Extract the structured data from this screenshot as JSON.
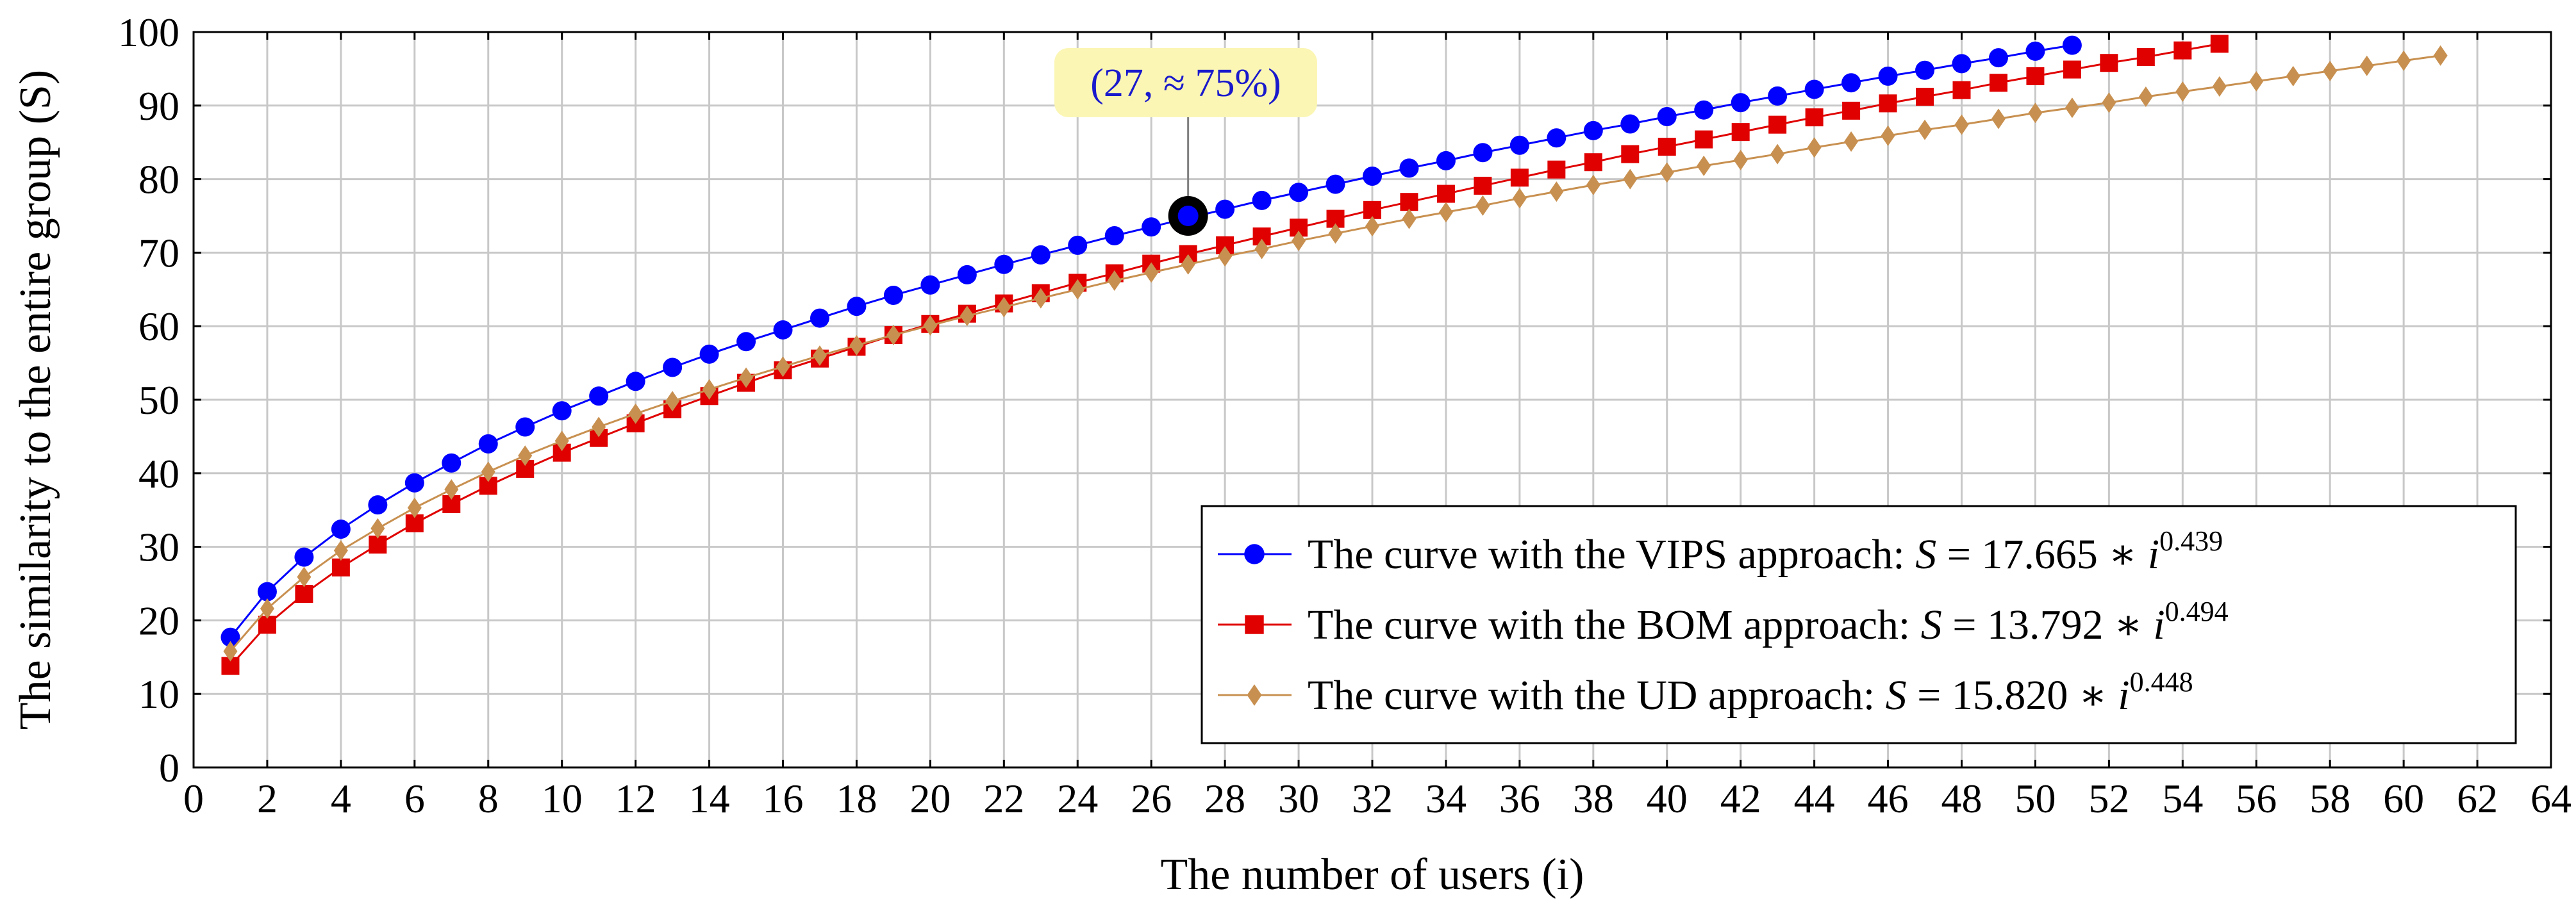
{
  "chart_data": {
    "type": "line",
    "xlabel": "The number of users (i)",
    "ylabel": "The similarity to the entire group (S)",
    "xlim": [
      0,
      64
    ],
    "ylim": [
      0,
      100
    ],
    "x_ticks": [
      0,
      2,
      4,
      6,
      8,
      10,
      12,
      14,
      16,
      18,
      20,
      22,
      24,
      26,
      28,
      30,
      32,
      34,
      36,
      38,
      40,
      42,
      44,
      46,
      48,
      50,
      52,
      54,
      56,
      58,
      60,
      62,
      64
    ],
    "y_ticks": [
      0,
      10,
      20,
      30,
      40,
      50,
      60,
      70,
      80,
      90,
      100
    ],
    "grid": true,
    "legend_position": "bottom-right",
    "annotation": {
      "text": "(27, ≈ 75%)",
      "x": 27,
      "y": 75,
      "box_color": "#fbf6b4"
    },
    "series": [
      {
        "name": "VIPS",
        "label": "The curve with the VIPS approach: ",
        "formula_prefix": "S",
        "formula_mid": " = 17.665 ∗ ",
        "formula_var": "i",
        "exponent": "0.439",
        "color": "#0000ff",
        "marker": "circle",
        "x": [
          1,
          2,
          3,
          4,
          5,
          6,
          7,
          8,
          9,
          10,
          11,
          12,
          13,
          14,
          15,
          16,
          17,
          18,
          19,
          20,
          21,
          22,
          23,
          24,
          25,
          26,
          27,
          28,
          29,
          30,
          31,
          32,
          33,
          34,
          35,
          36,
          37,
          38,
          39,
          40,
          41,
          42,
          43,
          44,
          45,
          46,
          47,
          48,
          49,
          50,
          51
        ],
        "values": [
          17.7,
          23.9,
          28.6,
          32.4,
          35.7,
          38.7,
          41.4,
          44.0,
          46.3,
          48.5,
          50.5,
          52.5,
          54.4,
          56.2,
          57.9,
          59.5,
          61.1,
          62.7,
          64.2,
          65.6,
          67.0,
          68.4,
          69.7,
          71.0,
          72.3,
          73.5,
          74.7,
          75.9,
          77.1,
          78.2,
          79.3,
          80.4,
          81.5,
          82.5,
          83.6,
          84.6,
          85.6,
          86.6,
          87.5,
          88.5,
          89.4,
          90.4,
          91.3,
          92.2,
          93.1,
          94.0,
          94.8,
          95.7,
          96.5,
          97.4,
          98.2
        ]
      },
      {
        "name": "BOM",
        "label": "The curve with the BOM approach: ",
        "formula_prefix": "S",
        "formula_mid": " = 13.792 ∗ ",
        "formula_var": "i",
        "exponent": "0.494",
        "color": "#e00000",
        "marker": "square",
        "x": [
          1,
          2,
          3,
          4,
          5,
          6,
          7,
          8,
          9,
          10,
          11,
          12,
          13,
          14,
          15,
          16,
          17,
          18,
          19,
          20,
          21,
          22,
          23,
          24,
          25,
          26,
          27,
          28,
          29,
          30,
          31,
          32,
          33,
          34,
          35,
          36,
          37,
          38,
          39,
          40,
          41,
          42,
          43,
          44,
          45,
          46,
          47,
          48,
          49,
          50,
          51,
          52,
          53,
          54,
          55
        ],
        "values": [
          13.8,
          19.4,
          23.6,
          27.2,
          30.3,
          33.2,
          35.8,
          38.3,
          40.6,
          42.8,
          44.8,
          46.8,
          48.7,
          50.5,
          52.3,
          54.0,
          55.6,
          57.2,
          58.8,
          60.3,
          61.7,
          63.1,
          64.5,
          65.9,
          67.2,
          68.5,
          69.8,
          71.0,
          72.2,
          73.4,
          74.6,
          75.8,
          76.9,
          78.0,
          79.1,
          80.2,
          81.3,
          82.3,
          83.4,
          84.4,
          85.4,
          86.4,
          87.4,
          88.4,
          89.3,
          90.3,
          91.2,
          92.1,
          93.1,
          94.0,
          94.9,
          95.8,
          96.6,
          97.5,
          98.4
        ]
      },
      {
        "name": "UD",
        "label": "The curve with the UD approach: ",
        "formula_prefix": "S",
        "formula_mid": " = 15.820 ∗ ",
        "formula_var": "i",
        "exponent": "0.448",
        "color": "#c89050",
        "marker": "diamond",
        "x": [
          1,
          2,
          3,
          4,
          5,
          6,
          7,
          8,
          9,
          10,
          11,
          12,
          13,
          14,
          15,
          16,
          17,
          18,
          19,
          20,
          21,
          22,
          23,
          24,
          25,
          26,
          27,
          28,
          29,
          30,
          31,
          32,
          33,
          34,
          35,
          36,
          37,
          38,
          39,
          40,
          41,
          42,
          43,
          44,
          45,
          46,
          47,
          48,
          49,
          50,
          51,
          52,
          53,
          54,
          55,
          56,
          57,
          58,
          59,
          60,
          61
        ],
        "values": [
          15.8,
          21.6,
          25.9,
          29.5,
          32.5,
          35.3,
          37.8,
          40.2,
          42.4,
          44.4,
          46.3,
          48.1,
          49.8,
          51.4,
          53.0,
          54.5,
          56.0,
          57.4,
          58.8,
          60.1,
          61.4,
          62.6,
          63.8,
          65.0,
          66.2,
          67.3,
          68.4,
          69.5,
          70.5,
          71.6,
          72.6,
          73.6,
          74.6,
          75.5,
          76.4,
          77.4,
          78.3,
          79.2,
          80.0,
          80.9,
          81.8,
          82.6,
          83.4,
          84.3,
          85.1,
          85.9,
          86.7,
          87.4,
          88.2,
          89.0,
          89.7,
          90.4,
          91.2,
          91.9,
          92.6,
          93.3,
          94.0,
          94.7,
          95.4,
          96.1,
          96.8
        ]
      }
    ]
  }
}
